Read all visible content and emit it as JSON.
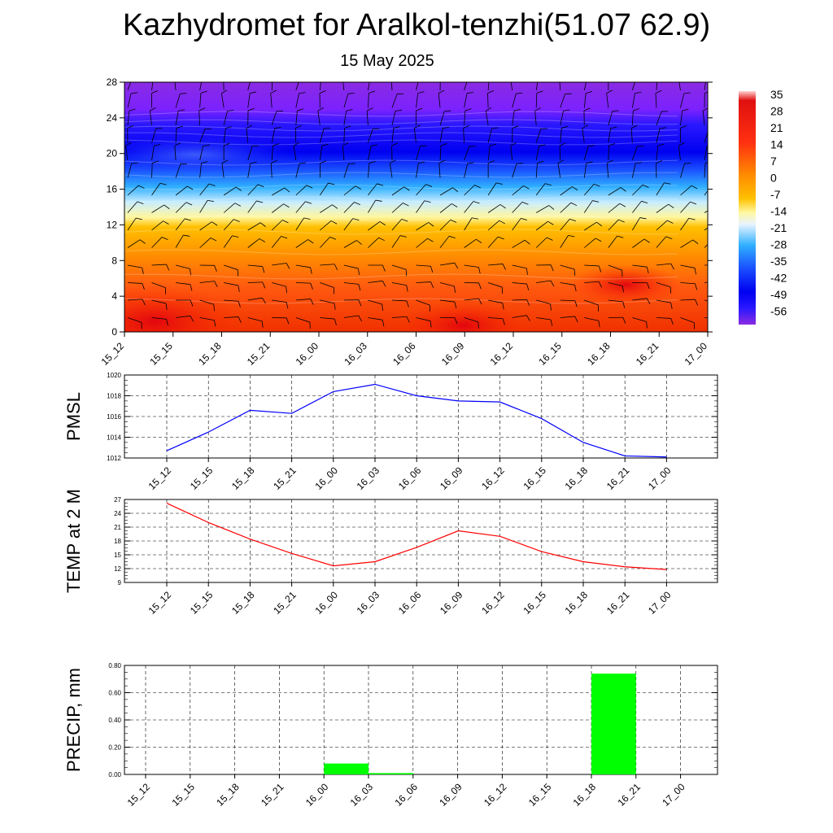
{
  "title": "Kazhydromet for Aralkol-tenzhi(51.07 62.9)",
  "subtitle": "15 May 2025",
  "time_labels": [
    "15_12",
    "15_15",
    "15_18",
    "15_21",
    "16_00",
    "16_03",
    "16_06",
    "16_09",
    "16_12",
    "16_15",
    "16_18",
    "16_21",
    "17_00"
  ],
  "colorbar": {
    "labels": [
      "35",
      "28",
      "21",
      "14",
      "7",
      "0",
      "-7",
      "-14",
      "-21",
      "-28",
      "-35",
      "-42",
      "-49",
      "-56"
    ]
  },
  "chart_data": [
    {
      "type": "heatmap",
      "title": "",
      "ylim": [
        0,
        28
      ],
      "y_ticks": [
        "0",
        "4",
        "8",
        "12",
        "16",
        "20",
        "24",
        "28"
      ],
      "x_ticks": [
        "15_12",
        "15_15",
        "15_18",
        "15_21",
        "16_00",
        "16_03",
        "16_06",
        "16_09",
        "16_12",
        "16_15",
        "16_18",
        "16_21",
        "17_00"
      ],
      "colorbar_range": [
        -56,
        35
      ],
      "grid": false
    },
    {
      "type": "line",
      "ylabel": "PMSL",
      "ylim": [
        1012,
        1020
      ],
      "y_ticks": [
        "1012",
        "1014",
        "1016",
        "1018",
        "1020"
      ],
      "x": [
        "15_12",
        "15_15",
        "15_18",
        "15_21",
        "16_00",
        "16_03",
        "16_06",
        "16_09",
        "16_12",
        "16_15",
        "16_18",
        "16_21",
        "17_00"
      ],
      "series": [
        {
          "values": [
            1012.7,
            1014.5,
            1016.6,
            1016.3,
            1018.4,
            1019.1,
            1018.0,
            1017.5,
            1017.4,
            1015.8,
            1013.5,
            1012.2,
            1012.1
          ],
          "color": "#0000ff"
        }
      ],
      "grid": true
    },
    {
      "type": "line",
      "ylabel": "TEMP at 2 M",
      "ylim": [
        9,
        27
      ],
      "y_ticks": [
        "9",
        "12",
        "15",
        "18",
        "21",
        "24",
        "27"
      ],
      "x": [
        "15_12",
        "15_15",
        "15_18",
        "15_21",
        "16_00",
        "16_03",
        "16_06",
        "16_09",
        "16_12",
        "16_15",
        "16_18",
        "16_21",
        "17_00"
      ],
      "series": [
        {
          "values": [
            26.2,
            22.0,
            18.4,
            15.3,
            12.6,
            13.5,
            16.6,
            20.2,
            19.0,
            15.7,
            13.5,
            12.4,
            11.8
          ],
          "color": "#ff0000"
        }
      ],
      "grid": true
    },
    {
      "type": "bar",
      "ylabel": "PRECIP, mm",
      "ylim": [
        0,
        0.8
      ],
      "y_ticks": [
        "0.00",
        "0.20",
        "0.40",
        "0.60",
        "0.80"
      ],
      "categories": [
        "15_12",
        "15_15",
        "15_18",
        "15_21",
        "16_00",
        "16_03",
        "16_06",
        "16_09",
        "16_12",
        "16_15",
        "16_18",
        "16_21",
        "17_00"
      ],
      "values": [
        0,
        0,
        0,
        0,
        0,
        0.08,
        0.01,
        0,
        0,
        0,
        0,
        0.74,
        0
      ],
      "color": "#00ff00",
      "grid": true
    }
  ]
}
